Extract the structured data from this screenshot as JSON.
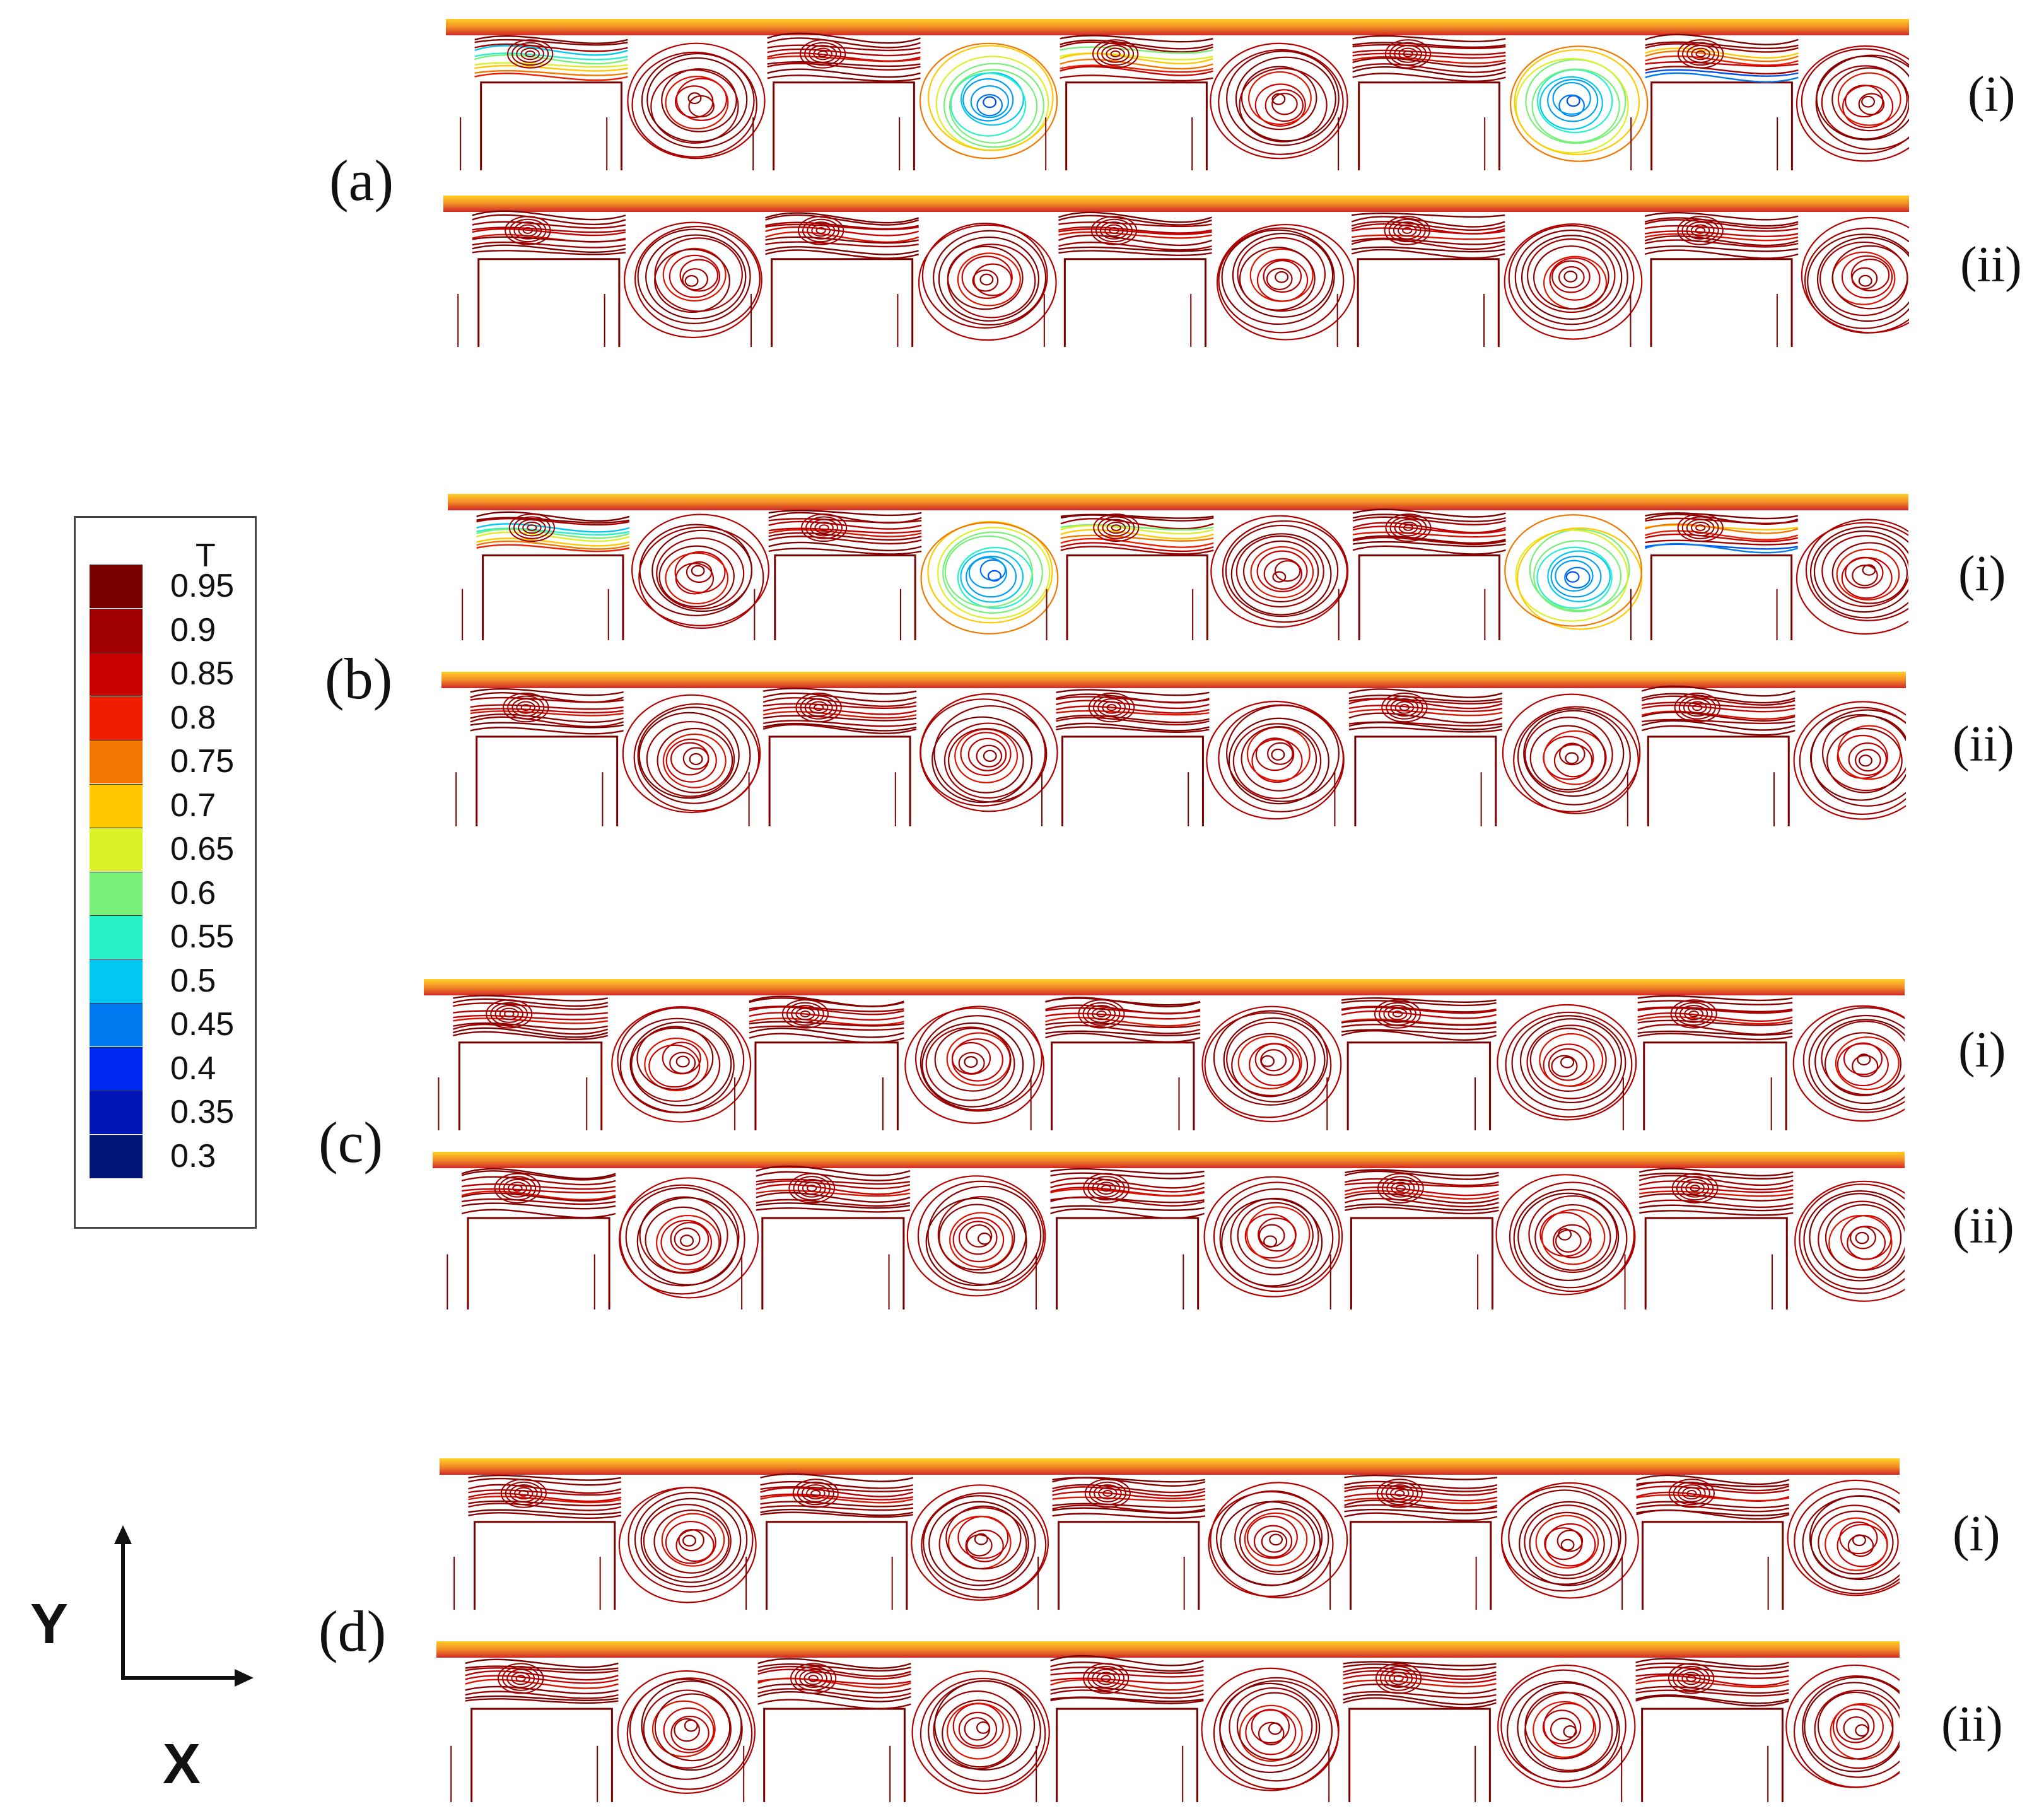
{
  "panels": [
    {
      "label": "(a)",
      "rows": [
        {
          "label": "(i)",
          "palette": "mixed"
        },
        {
          "label": "(ii)",
          "palette": "hot"
        }
      ]
    },
    {
      "label": "(b)",
      "rows": [
        {
          "label": "(i)",
          "palette": "mixed"
        },
        {
          "label": "(ii)",
          "palette": "hot"
        }
      ]
    },
    {
      "label": "(c)",
      "rows": [
        {
          "label": "(i)",
          "palette": "hot"
        },
        {
          "label": "(ii)",
          "palette": "hot"
        }
      ]
    },
    {
      "label": "(d)",
      "rows": [
        {
          "label": "(i)",
          "palette": "hot"
        },
        {
          "label": "(ii)",
          "palette": "hot"
        }
      ]
    }
  ],
  "legend": {
    "title": "T",
    "ticks": [
      "0.95",
      "0.9",
      "0.85",
      "0.8",
      "0.75",
      "0.7",
      "0.65",
      "0.6",
      "0.55",
      "0.5",
      "0.45",
      "0.4",
      "0.35",
      "0.3"
    ],
    "colors": [
      "#7a0000",
      "#a00000",
      "#c80000",
      "#f01e00",
      "#f07800",
      "#ffc800",
      "#dcf028",
      "#78f078",
      "#28f0c8",
      "#00c8f0",
      "#0078f0",
      "#0028f0",
      "#0014b4",
      "#001478"
    ]
  },
  "axes": {
    "y_label": "Y",
    "x_label": "X"
  },
  "colors": {
    "line_dark": "#8b0000",
    "frame": "#7a0000"
  }
}
